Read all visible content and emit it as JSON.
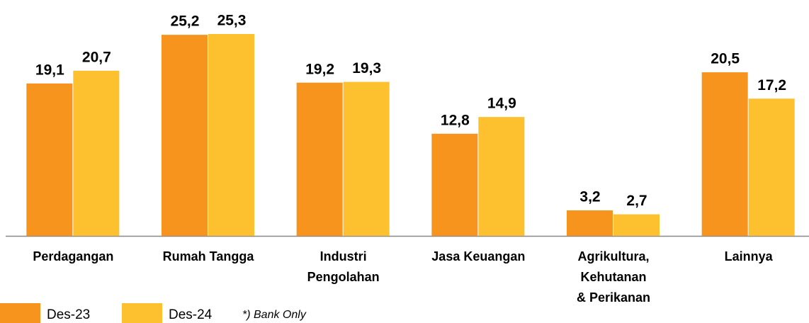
{
  "chart_data": {
    "type": "bar",
    "categories": [
      [
        "Perdagangan"
      ],
      [
        "Rumah Tangga"
      ],
      [
        "Industri",
        "Pengolahan"
      ],
      [
        "Jasa Keuangan"
      ],
      [
        "Agrikultura,",
        "Kehutanan",
        "& Perikanan"
      ],
      [
        "Lainnya"
      ]
    ],
    "series": [
      {
        "name": "Des-23",
        "color": "#f7941d",
        "values": [
          19.1,
          25.2,
          19.2,
          12.8,
          3.2,
          20.5
        ],
        "value_labels": [
          "19,1",
          "25,2",
          "19,2",
          "12,8",
          "3,2",
          "20,5"
        ]
      },
      {
        "name": "Des-24",
        "color": "#fdc02f",
        "values": [
          20.7,
          25.3,
          19.3,
          14.9,
          2.7,
          17.2
        ],
        "value_labels": [
          "20,7",
          "25,3",
          "19,3",
          "14,9",
          "2,7",
          "17,2"
        ]
      }
    ],
    "ylim": [
      0,
      25.3
    ],
    "annotation": "*) Bank Only"
  }
}
